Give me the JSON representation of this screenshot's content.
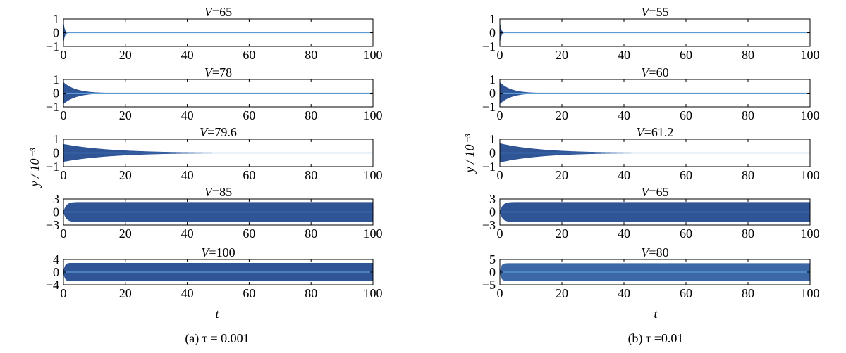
{
  "figure": {
    "ylabel": "y / 10⁻³",
    "xlabel": "t",
    "captions": [
      "(a) τ = 0.001",
      "(b) τ =0.01"
    ]
  },
  "chart_data": [
    {
      "type": "area",
      "group": "a",
      "title": "V=65",
      "xlim": [
        0,
        100
      ],
      "ylim": [
        -1,
        1
      ],
      "yticks": [
        1,
        0,
        -1
      ],
      "ytick_labels": [
        "1",
        "0",
        "−1"
      ],
      "xticks": [
        0,
        20,
        40,
        60,
        80,
        100
      ],
      "amplitude": 0.8,
      "decay": 2.5,
      "behavior": "decay",
      "color": "#2f5597"
    },
    {
      "type": "area",
      "group": "a",
      "title": "V=78",
      "xlim": [
        0,
        100
      ],
      "ylim": [
        -1,
        1
      ],
      "yticks": [
        1,
        0,
        -1
      ],
      "ytick_labels": [
        "1",
        "0",
        "−1"
      ],
      "xticks": [
        0,
        20,
        40,
        60,
        80,
        100
      ],
      "amplitude": 0.8,
      "decay": 0.25,
      "behavior": "decay",
      "color": "#2f5597"
    },
    {
      "type": "area",
      "group": "a",
      "title": "V=79.6",
      "xlim": [
        0,
        100
      ],
      "ylim": [
        -1,
        1
      ],
      "yticks": [
        1,
        0,
        -1
      ],
      "ytick_labels": [
        "1",
        "0",
        "−1"
      ],
      "xticks": [
        0,
        20,
        40,
        60,
        80,
        100
      ],
      "amplitude": 0.65,
      "decay": 0.065,
      "behavior": "decay",
      "color": "#2f5597"
    },
    {
      "type": "area",
      "group": "a",
      "title": "V=85",
      "xlim": [
        0,
        100
      ],
      "ylim": [
        -3,
        3
      ],
      "yticks": [
        3,
        0,
        -3
      ],
      "ytick_labels": [
        "3",
        "0",
        "−3"
      ],
      "xticks": [
        0,
        20,
        40,
        60,
        80,
        100
      ],
      "amplitude": 2.3,
      "rise": 2,
      "behavior": "limit-cycle",
      "color": "#2f5597"
    },
    {
      "type": "area",
      "group": "a",
      "title": "V=100",
      "xlim": [
        0,
        100
      ],
      "ylim": [
        -4,
        4
      ],
      "yticks": [
        4,
        0,
        -4
      ],
      "ytick_labels": [
        "4",
        "0",
        "−4"
      ],
      "xticks": [
        0,
        20,
        40,
        60,
        80,
        100
      ],
      "amplitude": 2.9,
      "rise": 1,
      "behavior": "limit-cycle",
      "color": "#2f5597"
    },
    {
      "type": "area",
      "group": "b",
      "title": "V=55",
      "xlim": [
        0,
        100
      ],
      "ylim": [
        -1,
        1
      ],
      "yticks": [
        1,
        0,
        -1
      ],
      "ytick_labels": [
        "1",
        "0",
        "−1"
      ],
      "xticks": [
        0,
        20,
        40,
        60,
        80,
        100
      ],
      "amplitude": 0.8,
      "decay": 2.5,
      "behavior": "decay",
      "color": "#2f5597"
    },
    {
      "type": "area",
      "group": "b",
      "title": "V=60",
      "xlim": [
        0,
        100
      ],
      "ylim": [
        -1,
        1
      ],
      "yticks": [
        1,
        0,
        -1
      ],
      "ytick_labels": [
        "1",
        "0",
        "−1"
      ],
      "xticks": [
        0,
        20,
        40,
        60,
        80,
        100
      ],
      "amplitude": 0.8,
      "decay": 0.28,
      "behavior": "decay",
      "color": "#2f5597"
    },
    {
      "type": "area",
      "group": "b",
      "title": "V=61.2",
      "xlim": [
        0,
        100
      ],
      "ylim": [
        -1,
        1
      ],
      "yticks": [
        1,
        0,
        -1
      ],
      "ytick_labels": [
        "1",
        "0",
        "−1"
      ],
      "xticks": [
        0,
        20,
        40,
        60,
        80,
        100
      ],
      "amplitude": 0.7,
      "decay": 0.075,
      "behavior": "decay",
      "color": "#2f5597"
    },
    {
      "type": "area",
      "group": "b",
      "title": "V=65",
      "xlim": [
        0,
        100
      ],
      "ylim": [
        -3,
        3
      ],
      "yticks": [
        3,
        0,
        -3
      ],
      "ytick_labels": [
        "3",
        "0",
        "−3"
      ],
      "xticks": [
        0,
        20,
        40,
        60,
        80,
        100
      ],
      "amplitude": 2.3,
      "rise": 2,
      "behavior": "limit-cycle",
      "color": "#2f5597"
    },
    {
      "type": "area",
      "group": "b",
      "title": "V=80",
      "xlim": [
        0,
        100
      ],
      "ylim": [
        -5,
        5
      ],
      "yticks": [
        5,
        0,
        -5
      ],
      "ytick_labels": [
        "5",
        "0",
        "−5"
      ],
      "xticks": [
        0,
        20,
        40,
        60,
        80,
        100
      ],
      "amplitude": 3.5,
      "rise": 1,
      "behavior": "limit-cycle",
      "color": "#3d68a8"
    }
  ]
}
